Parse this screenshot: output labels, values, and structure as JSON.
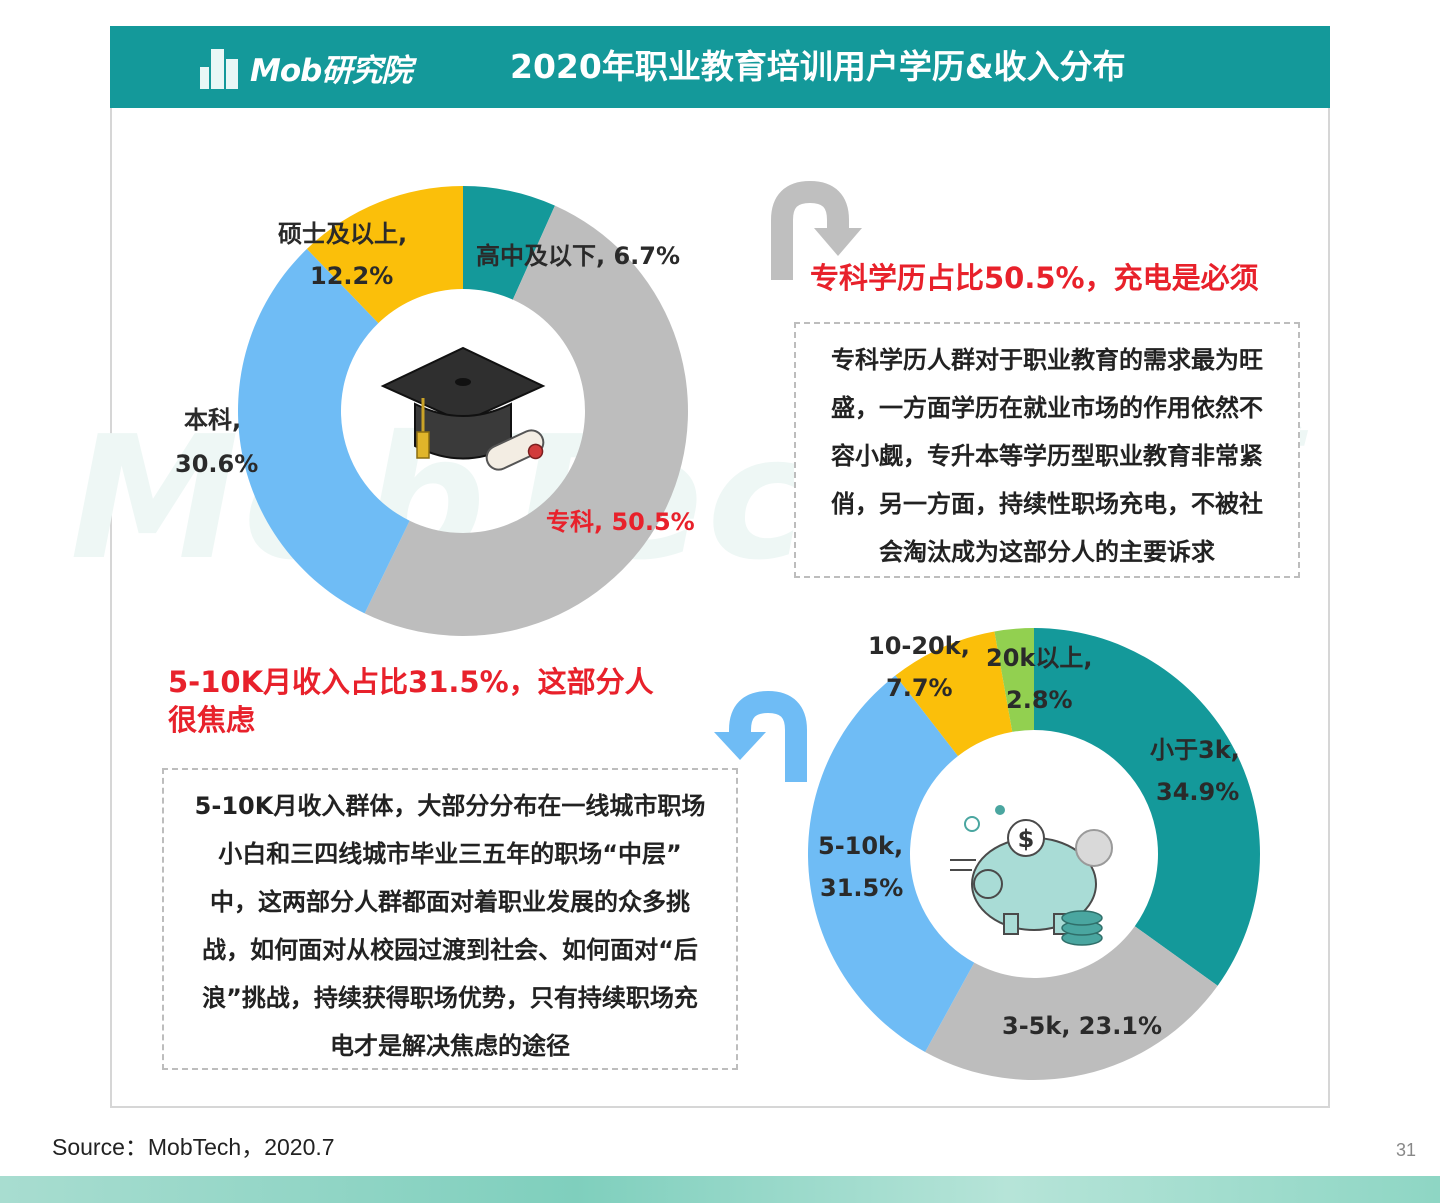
{
  "header": {
    "logo_text": "Mob研究院",
    "title": "2020年职业教育培训用户学历&收入分布"
  },
  "watermark": "MobTech袤博",
  "colors": {
    "teal": "#14999a",
    "gray": "#bdbdbd",
    "blue": "#6fbcf5",
    "yellow": "#fbbf0a",
    "green": "#92d050",
    "accent_red": "#e8212b"
  },
  "icons": {
    "education_center": "graduation-cap-icon",
    "income_center": "piggy-bank-icon"
  },
  "chart_data": [
    {
      "type": "pie",
      "variant": "donut",
      "categories": [
        "高中及以下",
        "专科",
        "本科",
        "硕士及以上"
      ],
      "values": [
        6.7,
        50.5,
        30.6,
        12.2
      ],
      "labels": [
        "高中及以下, 6.7%",
        "专科, 50.5%",
        "本科, 30.6%",
        "硕士及以上, 12.2%"
      ],
      "colors": [
        "#14999a",
        "#bdbdbd",
        "#6fbcf5",
        "#fbbf0a"
      ],
      "unit": "%"
    },
    {
      "type": "pie",
      "variant": "donut",
      "categories": [
        "小于3k",
        "3-5k",
        "5-10k",
        "10-20k",
        "20k以上"
      ],
      "values": [
        34.9,
        23.1,
        31.5,
        7.7,
        2.8
      ],
      "labels": [
        "小于3k, 34.9%",
        "3-5k, 23.1%",
        "5-10k, 31.5%",
        "10-20k, 7.7%",
        "20k以上, 2.8%"
      ],
      "colors": [
        "#14999a",
        "#bdbdbd",
        "#6fbcf5",
        "#fbbf0a",
        "#92d050"
      ],
      "unit": "%"
    }
  ],
  "edu_labels": {
    "high_school": "高中及以下, 6.7%",
    "master_name": "硕士及以上,",
    "master_value": "12.2%",
    "bachelor_name": "本科,",
    "bachelor_value": "30.6%",
    "junior_college": "专科, 50.5%"
  },
  "income_labels": {
    "lt3k_name": "小于3k,",
    "lt3k_value": "34.9%",
    "k3_5": "3-5k, 23.1%",
    "k5_10_name": "5-10k,",
    "k5_10_value": "31.5%",
    "k10_20_name": "10-20k,",
    "k10_20_value": "7.7%",
    "gt20k_name": "20k以上,",
    "gt20k_value": "2.8%"
  },
  "insight_edu": {
    "headline": "专科学历占比50.5%，充电是必须",
    "body_lines": [
      "专科学历人群对于职业教育的需求最为旺",
      "盛，一方面学历在就业市场的作用依然不",
      "容小觑，专升本等学历型职业教育非常紧",
      "俏，另一方面，持续性职场充电，不被社",
      "会淘汰成为这部分人的主要诉求"
    ]
  },
  "insight_income": {
    "headline_line1": "5-10K月收入占比31.5%，这部分人",
    "headline_line2": "很焦虑",
    "body_lines": [
      "5-10K月收入群体，大部分分布在一线城市职场",
      "小白和三四线城市毕业三五年的职场“中层”",
      "中，这两部分人群都面对着职业发展的众多挑",
      "战，如何面对从校园过渡到社会、如何面对“后",
      "浪”挑战，持续获得职场优势，只有持续职场充",
      "电才是解决焦虑的途径"
    ]
  },
  "footer": {
    "source": "Source：MobTech，2020.7",
    "page_number": "31"
  }
}
